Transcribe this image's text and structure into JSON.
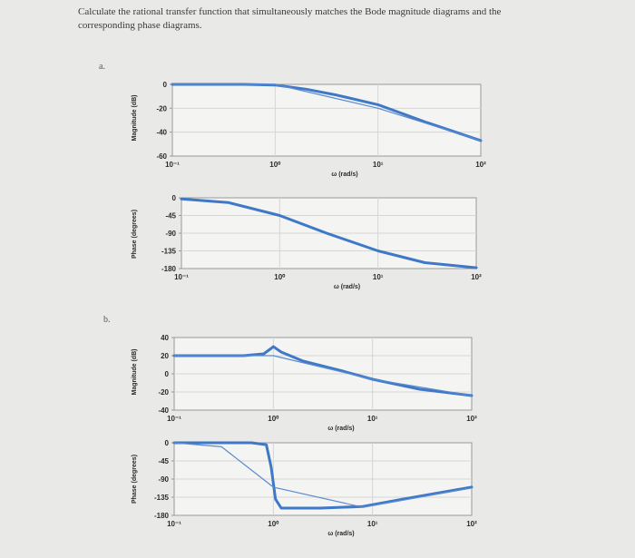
{
  "question": "Calculate the rational transfer function that simultaneously matches the Bode magnitude diagrams and the corresponding phase diagrams.",
  "parts": [
    {
      "label": "a."
    },
    {
      "label": "b."
    }
  ],
  "colors": {
    "curve": "#3f78c7",
    "asymptote": "#5a8ad0",
    "frame": "#999999",
    "grid": "#d6d6d6"
  },
  "chart_data": [
    {
      "type": "line",
      "part": "a",
      "ylabel": "Magnitude (dB)",
      "xlabel": "ω (rad/s)",
      "x_scale": "log",
      "xlim": [
        0.1,
        100
      ],
      "ylim": [
        -60,
        0
      ],
      "x_ticks": [
        "10⁻¹",
        "10⁰",
        "10¹",
        "10²"
      ],
      "y_ticks": [
        "0",
        "-20",
        "-40",
        "-60"
      ],
      "series": [
        {
          "x": [
            0.1,
            0.5,
            1,
            2,
            4,
            10,
            30,
            100
          ],
          "y": [
            0,
            0,
            -0.5,
            -4,
            -9,
            -17,
            -32,
            -47
          ]
        },
        {
          "x": [
            0.1,
            1,
            10,
            100
          ],
          "y": [
            0,
            0,
            -20,
            -47
          ]
        }
      ]
    },
    {
      "type": "line",
      "part": "a",
      "ylabel": "Phase (degrees)",
      "xlabel": "ω (rad/s)",
      "x_scale": "log",
      "xlim": [
        0.1,
        100
      ],
      "ylim": [
        -180,
        0
      ],
      "x_ticks": [
        "10⁻¹",
        "10⁰",
        "10¹",
        "10²"
      ],
      "y_ticks": [
        "0",
        "-45",
        "-90",
        "-135",
        "-180"
      ],
      "series": [
        {
          "x": [
            0.1,
            0.3,
            1,
            3,
            10,
            30,
            100
          ],
          "y": [
            -3,
            -12,
            -45,
            -90,
            -135,
            -165,
            -178
          ]
        }
      ]
    },
    {
      "type": "line",
      "part": "b",
      "ylabel": "Magnitude (dB)",
      "xlabel": "ω (rad/s)",
      "x_scale": "log",
      "xlim": [
        0.1,
        100
      ],
      "ylim": [
        -40,
        40
      ],
      "x_ticks": [
        "10⁻¹",
        "10⁰",
        "10¹",
        "10²"
      ],
      "y_ticks": [
        "40",
        "20",
        "0",
        "-20",
        "-40"
      ],
      "series": [
        {
          "x": [
            0.1,
            0.5,
            0.8,
            0.95,
            1,
            1.2,
            2,
            5,
            10,
            30,
            100
          ],
          "y": [
            20,
            20,
            22,
            28,
            30,
            24,
            14,
            3,
            -6,
            -17,
            -24
          ]
        },
        {
          "x": [
            0.1,
            1,
            10,
            100
          ],
          "y": [
            20,
            20,
            -6,
            -24
          ]
        }
      ]
    },
    {
      "type": "line",
      "part": "b",
      "ylabel": "Phase (degrees)",
      "xlabel": "ω (rad/s)",
      "x_scale": "log",
      "xlim": [
        0.1,
        100
      ],
      "ylim": [
        -180,
        0
      ],
      "x_ticks": [
        "10⁻¹",
        "10⁰",
        "10¹",
        "10²"
      ],
      "y_ticks": [
        "0",
        "-45",
        "-90",
        "-135",
        "-180"
      ],
      "series": [
        {
          "x": [
            0.1,
            0.6,
            0.85,
            0.95,
            1.05,
            1.2,
            3,
            8,
            20,
            100
          ],
          "y": [
            0,
            0,
            -5,
            -60,
            -140,
            -162,
            -162,
            -158,
            -140,
            -110
          ]
        },
        {
          "x": [
            0.1,
            0.3,
            1,
            8,
            100
          ],
          "y": [
            0,
            -10,
            -110,
            -160,
            -112
          ]
        }
      ]
    }
  ]
}
